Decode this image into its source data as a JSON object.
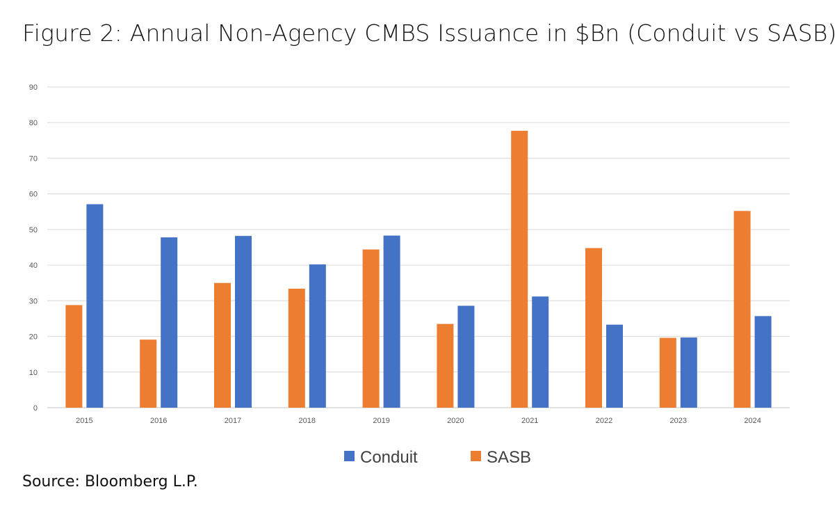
{
  "chart_data": {
    "type": "bar",
    "title": "Figure 2: Annual Non-Agency CMBS Issuance in $Bn (Conduit vs SASB)",
    "categories": [
      "2015",
      "2016",
      "2017",
      "2018",
      "2019",
      "2020",
      "2021",
      "2022",
      "2023",
      "2024"
    ],
    "series": [
      {
        "name": "SASB",
        "color": "#ED7D31",
        "values": [
          28.8,
          19.1,
          35.0,
          33.4,
          44.4,
          23.5,
          77.7,
          44.8,
          19.6,
          55.2
        ]
      },
      {
        "name": "Conduit",
        "color": "#4472C4",
        "values": [
          57.1,
          47.8,
          48.2,
          40.2,
          48.3,
          28.6,
          31.2,
          23.3,
          19.7,
          25.7
        ]
      }
    ],
    "legend_order": [
      "Conduit",
      "SASB"
    ],
    "ylim": [
      0,
      90
    ],
    "yticks": [
      0,
      10,
      20,
      30,
      40,
      50,
      60,
      70,
      80,
      90
    ],
    "grid": true,
    "legend_position": "bottom",
    "xlabel": "",
    "ylabel": ""
  },
  "source": "Source: Bloomberg L.P."
}
